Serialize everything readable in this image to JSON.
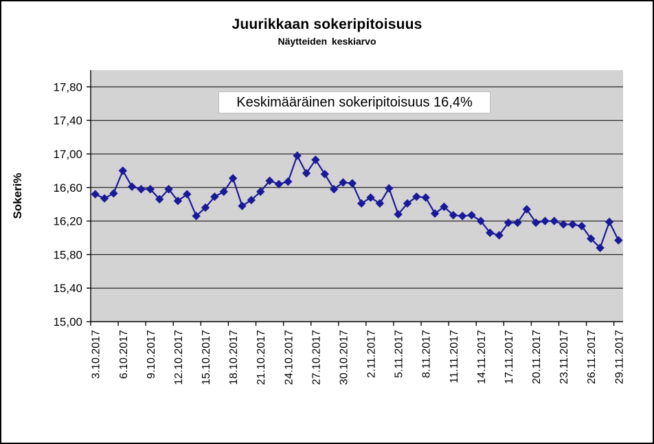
{
  "chart_data": {
    "type": "line",
    "title": "Juurikkaan sokeripitoisuus",
    "subtitle": "Näytteiden keskiarvo",
    "annotation": "Keskimääräinen sokeripitoisuus 16,4%",
    "ylabel": "Sokeri%",
    "xlabel": "",
    "legend": "none",
    "grid": "horizontal",
    "marker": "diamond",
    "ylim": [
      15.0,
      18.0
    ],
    "y_ticks": [
      15.0,
      15.4,
      15.8,
      16.2,
      16.6,
      17.0,
      17.4,
      17.8
    ],
    "y_tick_labels": [
      "15,00",
      "15,40",
      "15,80",
      "16,20",
      "16,60",
      "17,00",
      "17,40",
      "17,80"
    ],
    "x_tick_every": 3,
    "colors": {
      "series": "#1A1A99",
      "plot_bg": "#D3D3D3",
      "grid": "#000000",
      "axis": "#000000",
      "text": "#000000",
      "annotation_bg": "#FFFFFF",
      "frame_bg": "#FFFFFF",
      "frame_border": "#000000"
    },
    "categories": [
      "3.10.2017",
      "4.10.2017",
      "5.10.2017",
      "6.10.2017",
      "7.10.2017",
      "8.10.2017",
      "9.10.2017",
      "10.10.2017",
      "11.10.2017",
      "12.10.2017",
      "13.10.2017",
      "14.10.2017",
      "15.10.2017",
      "16.10.2017",
      "17.10.2017",
      "18.10.2017",
      "19.10.2017",
      "20.10.2017",
      "21.10.2017",
      "22.10.2017",
      "23.10.2017",
      "24.10.2017",
      "25.10.2017",
      "26.10.2017",
      "27.10.2017",
      "28.10.2017",
      "29.10.2017",
      "30.10.2017",
      "31.10.2017",
      "1.11.2017",
      "2.11.2017",
      "3.11.2017",
      "4.11.2017",
      "5.11.2017",
      "6.11.2017",
      "7.11.2017",
      "8.11.2017",
      "9.11.2017",
      "10.11.2017",
      "11.11.2017",
      "12.11.2017",
      "13.11.2017",
      "14.11.2017",
      "15.11.2017",
      "16.11.2017",
      "17.11.2017",
      "18.11.2017",
      "19.11.2017",
      "20.11.2017",
      "21.11.2017",
      "22.11.2017",
      "23.11.2017",
      "24.11.2017",
      "25.11.2017",
      "26.11.2017",
      "27.11.2017",
      "28.11.2017",
      "29.11.2017"
    ],
    "values": [
      16.52,
      16.47,
      16.53,
      16.8,
      16.61,
      16.58,
      16.58,
      16.46,
      16.58,
      16.44,
      16.52,
      16.26,
      16.36,
      16.49,
      16.55,
      16.71,
      16.38,
      16.45,
      16.55,
      16.68,
      16.64,
      16.67,
      16.98,
      16.77,
      16.93,
      16.76,
      16.58,
      16.66,
      16.65,
      16.41,
      16.48,
      16.41,
      16.59,
      16.28,
      16.41,
      16.49,
      16.48,
      16.29,
      16.37,
      16.27,
      16.26,
      16.27,
      16.2,
      16.06,
      16.03,
      16.18,
      16.18,
      16.34,
      16.18,
      16.2,
      16.2,
      16.16,
      16.16,
      16.14,
      15.99,
      15.88,
      16.19,
      15.97
    ]
  }
}
